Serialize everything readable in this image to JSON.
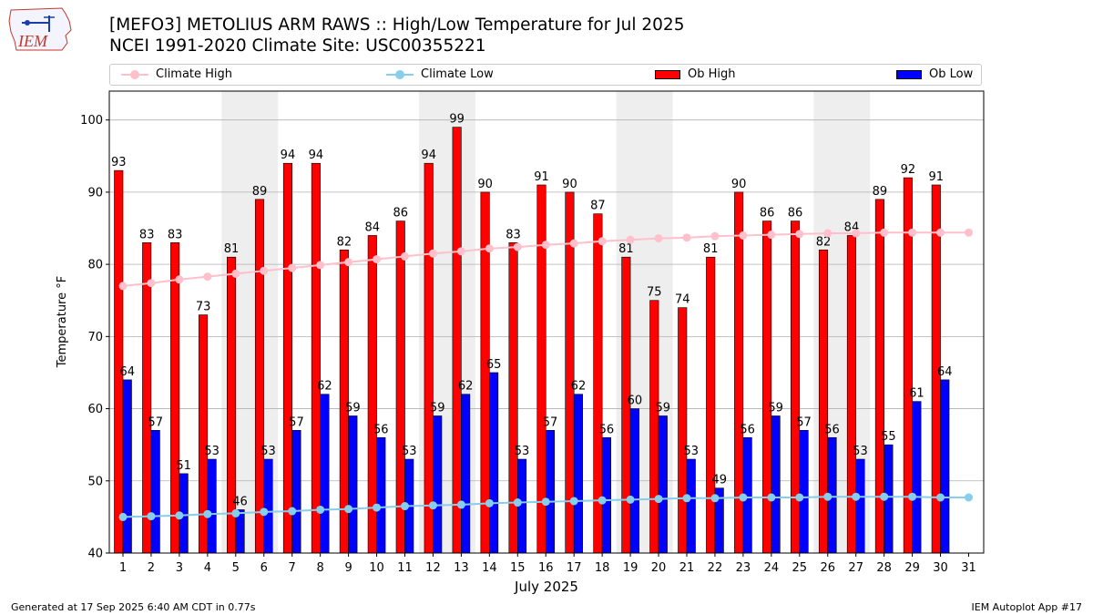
{
  "header": {
    "title_line1": "[MEFO3] METOLIUS ARM RAWS :: High/Low Temperature for Jul 2025",
    "title_line2": "NCEI 1991-2020 Climate Site: USC00355221",
    "logo_text": "IEM"
  },
  "footer": {
    "generated": "Generated at 17 Sep 2025 6:40 AM CDT in 0.77s",
    "app": "IEM Autoplot App #17"
  },
  "colors": {
    "climate_high": "#ffc0cb",
    "climate_low": "#87ceeb",
    "ob_high": "#ff0000",
    "ob_low": "#0000ff",
    "weekend_shade": "#eeeeee",
    "grid": "#b0b0b0"
  },
  "chart_data": {
    "type": "bar",
    "title": "[MEFO3] METOLIUS ARM RAWS :: High/Low Temperature for Jul 2025",
    "xlabel": "July 2025",
    "ylabel": "Temperature °F",
    "ylim": [
      40,
      104
    ],
    "yticks": [
      40,
      50,
      60,
      70,
      80,
      90,
      100
    ],
    "grid": true,
    "legend_position": "top",
    "categories": [
      "1",
      "2",
      "3",
      "4",
      "5",
      "6",
      "7",
      "8",
      "9",
      "10",
      "11",
      "12",
      "13",
      "14",
      "15",
      "16",
      "17",
      "18",
      "19",
      "20",
      "21",
      "22",
      "23",
      "24",
      "25",
      "26",
      "27",
      "28",
      "29",
      "30",
      "31"
    ],
    "shaded_day_pairs": [
      [
        5,
        6
      ],
      [
        12,
        13
      ],
      [
        19,
        20
      ],
      [
        26,
        27
      ]
    ],
    "series": [
      {
        "name": "Climate High",
        "kind": "line",
        "values": [
          77,
          77.4,
          77.9,
          78.3,
          78.7,
          79.1,
          79.5,
          79.9,
          80.3,
          80.7,
          81.1,
          81.5,
          81.8,
          82.2,
          82.4,
          82.7,
          82.9,
          83.2,
          83.4,
          83.6,
          83.7,
          83.9,
          84.0,
          84.1,
          84.2,
          84.3,
          84.3,
          84.4,
          84.4,
          84.4,
          84.4
        ]
      },
      {
        "name": "Climate Low",
        "kind": "line",
        "values": [
          45,
          45.1,
          45.2,
          45.4,
          45.5,
          45.7,
          45.8,
          46.0,
          46.1,
          46.3,
          46.5,
          46.6,
          46.7,
          46.9,
          47.0,
          47.1,
          47.2,
          47.3,
          47.4,
          47.5,
          47.6,
          47.6,
          47.7,
          47.7,
          47.7,
          47.8,
          47.8,
          47.8,
          47.8,
          47.7,
          47.7
        ]
      },
      {
        "name": "Ob High",
        "kind": "bar",
        "values": [
          93,
          83,
          83,
          73,
          81,
          89,
          94,
          94,
          82,
          84,
          86,
          94,
          99,
          90,
          83,
          91,
          90,
          87,
          81,
          75,
          74,
          81,
          90,
          86,
          86,
          82,
          84,
          89,
          92,
          91,
          null
        ]
      },
      {
        "name": "Ob Low",
        "kind": "bar",
        "values": [
          64,
          57,
          51,
          53,
          46,
          53,
          57,
          62,
          59,
          56,
          53,
          59,
          62,
          65,
          53,
          57,
          62,
          56,
          60,
          59,
          53,
          49,
          56,
          59,
          57,
          56,
          53,
          55,
          61,
          64,
          null
        ]
      }
    ]
  }
}
